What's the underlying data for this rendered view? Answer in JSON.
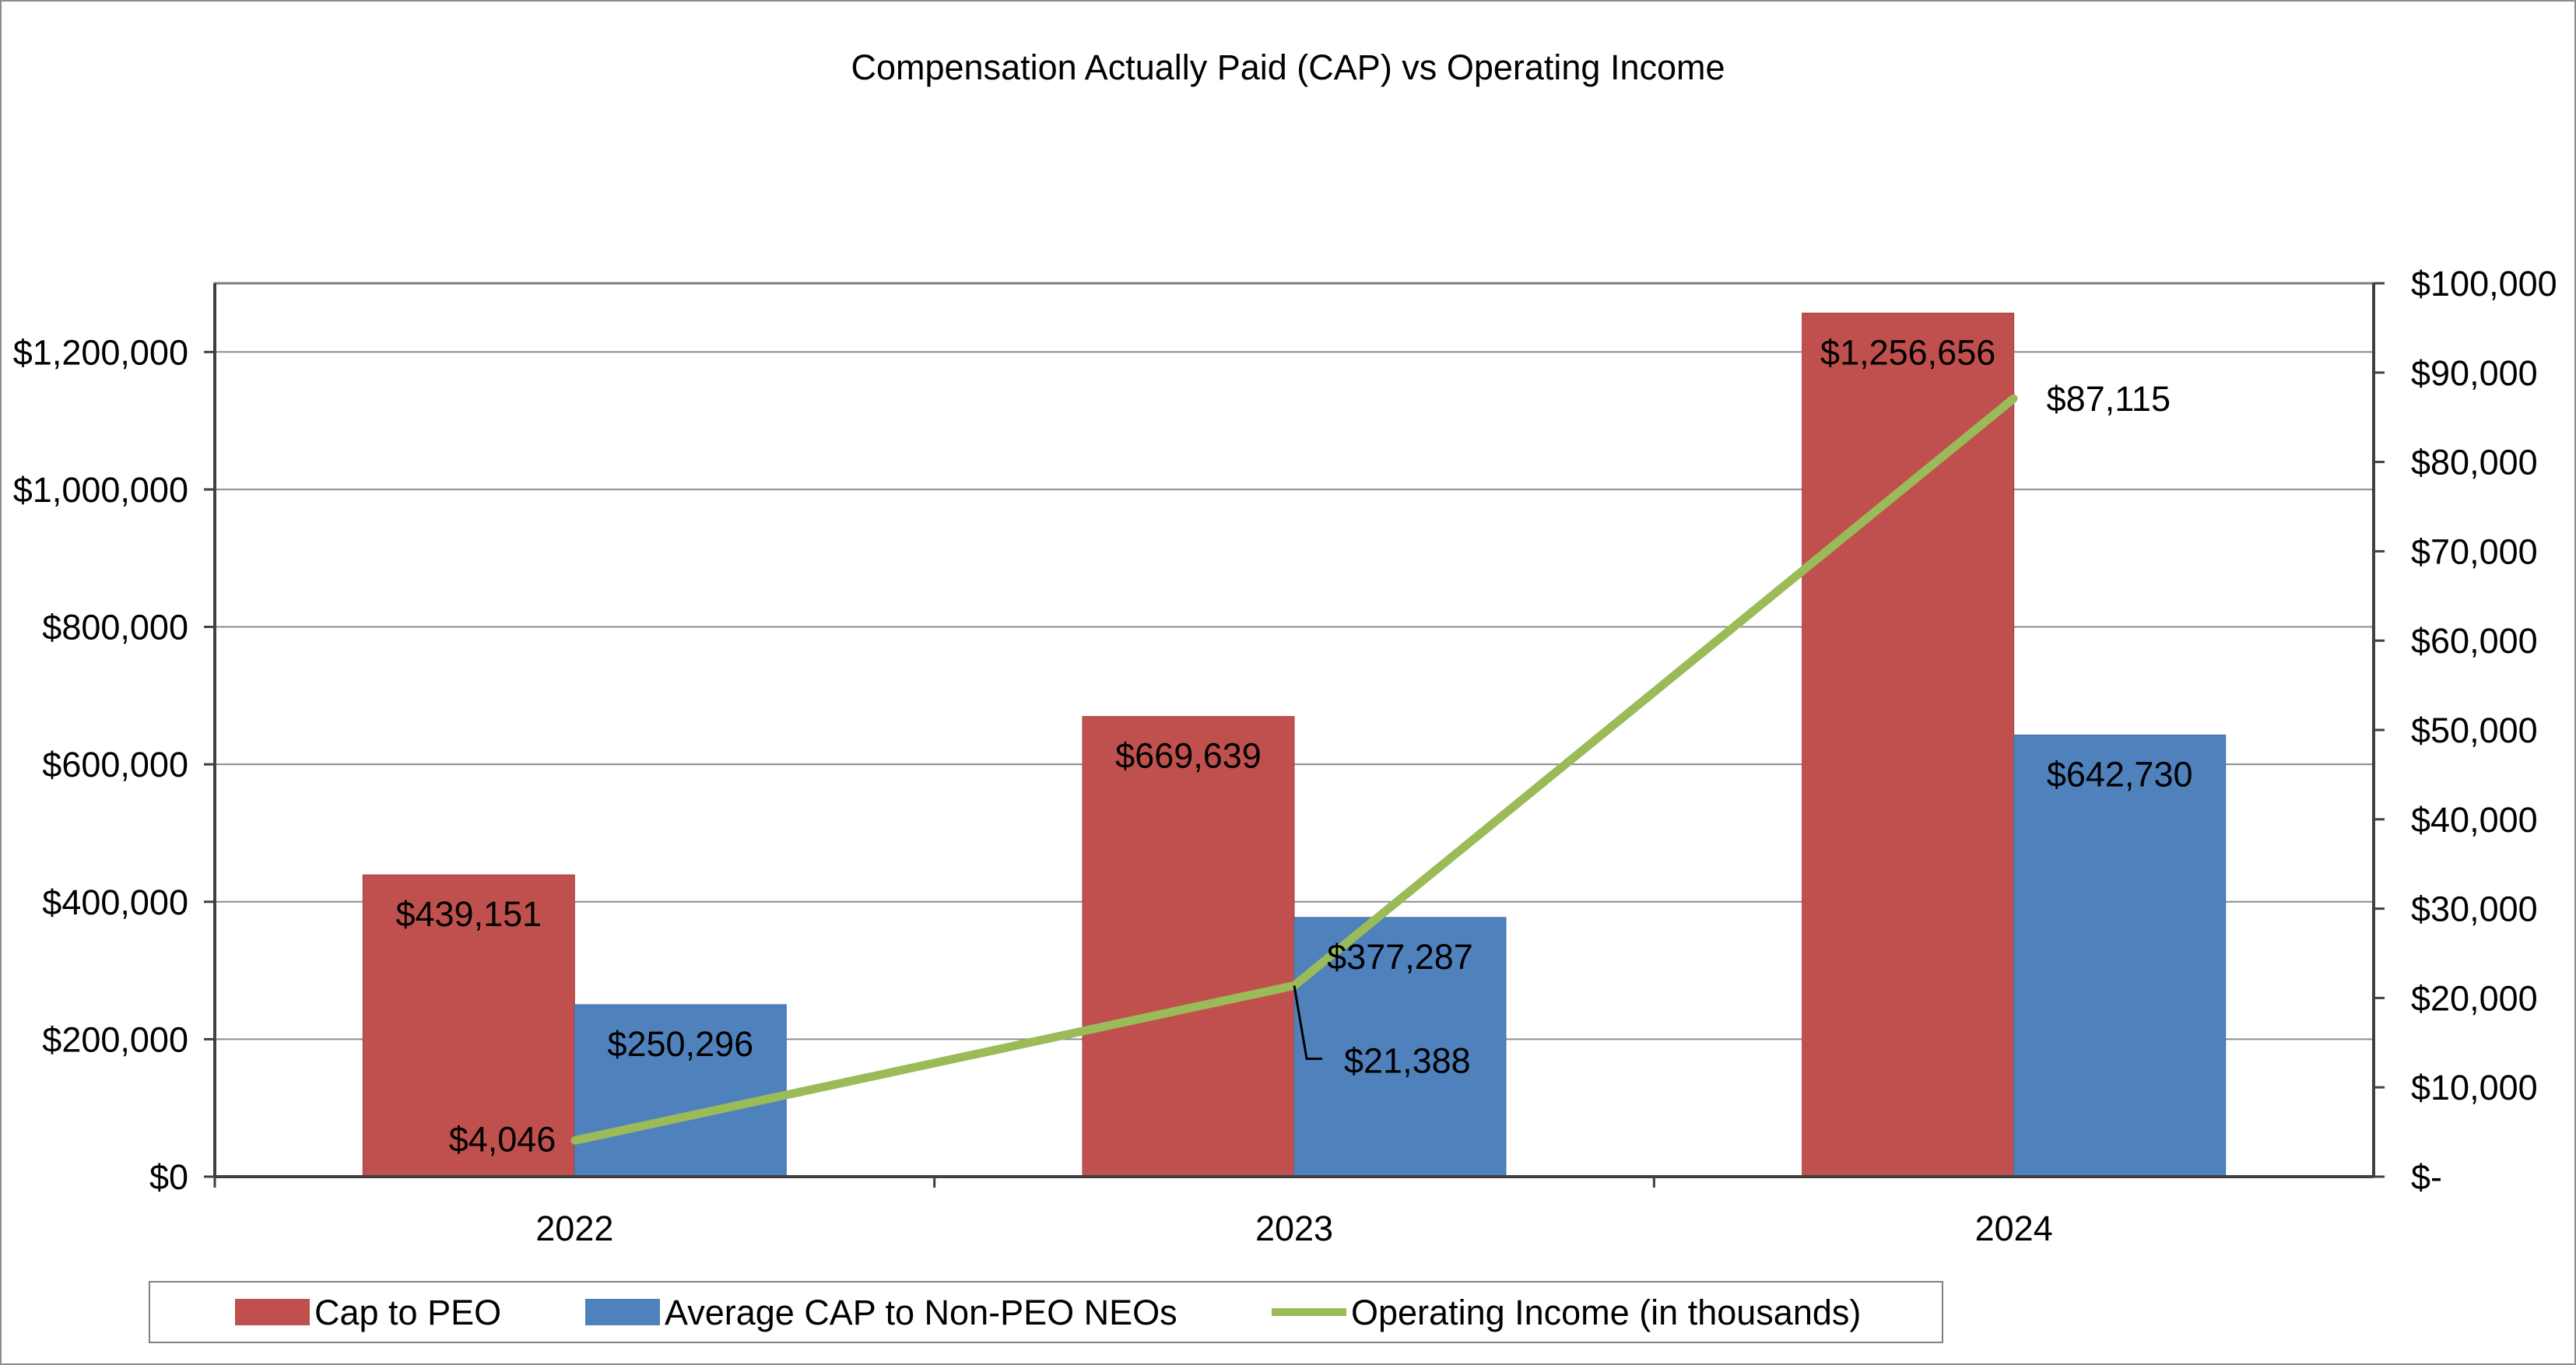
{
  "chart_data": {
    "type": "bar",
    "title": "Compensation Actually Paid (CAP) vs Operating Income",
    "categories": [
      "2022",
      "2023",
      "2024"
    ],
    "series": [
      {
        "name": "Cap to PEO",
        "type": "bar",
        "axis": "left",
        "color": "#C0504D",
        "values": [
          439151,
          669639,
          1256656
        ],
        "labels": [
          "$439,151",
          "$669,639",
          "$1,256,656"
        ]
      },
      {
        "name": "Average CAP to Non-PEO NEOs",
        "type": "bar",
        "axis": "left",
        "color": "#4F81BD",
        "values": [
          250296,
          377287,
          642730
        ],
        "labels": [
          "$250,296",
          "$377,287",
          "$642,730"
        ]
      },
      {
        "name": "Operating Income (in thousands)",
        "type": "line",
        "axis": "right",
        "color": "#9BBB59",
        "values": [
          4046,
          21388,
          87115
        ],
        "labels": [
          "$4,046",
          "$21,388",
          "$87,115"
        ]
      }
    ],
    "y_left": {
      "min": 0,
      "max": 1300000,
      "ticks": [
        0,
        200000,
        400000,
        600000,
        800000,
        1000000,
        1200000
      ],
      "tick_labels": [
        "$0",
        "$200,000",
        "$400,000",
        "$600,000",
        "$800,000",
        "$1,000,000",
        "$1,200,000"
      ]
    },
    "y_right": {
      "min": 0,
      "max": 100000,
      "ticks": [
        0,
        10000,
        20000,
        30000,
        40000,
        50000,
        60000,
        70000,
        80000,
        90000,
        100000
      ],
      "tick_labels": [
        "$-",
        "$10,000",
        "$20,000",
        "$30,000",
        "$40,000",
        "$50,000",
        "$60,000",
        "$70,000",
        "$80,000",
        "$90,000",
        "$100,000"
      ]
    },
    "xlabel": "",
    "ylabel": "",
    "grid": true,
    "legend_position": "bottom"
  }
}
